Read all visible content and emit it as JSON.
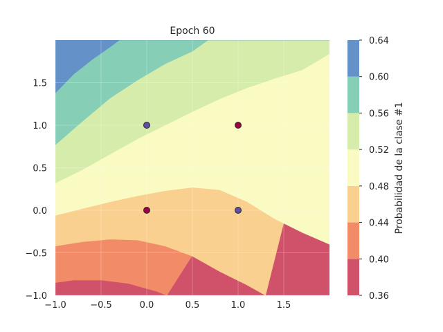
{
  "chart_data": {
    "type": "heatmap",
    "subtype": "filled-contour",
    "title": "Epoch 60",
    "xlabel": "",
    "ylabel": "",
    "xlim": [
      -1.0,
      2.0
    ],
    "ylim": [
      -1.0,
      2.0
    ],
    "xticks": [
      -1.0,
      -0.5,
      0.0,
      0.5,
      1.0,
      1.5
    ],
    "xtick_labels": [
      "−1.0",
      "−0.5",
      "0.0",
      "0.5",
      "1.0",
      "1.5"
    ],
    "yticks": [
      -1.0,
      -0.5,
      0.0,
      0.5,
      1.0,
      1.5
    ],
    "ytick_labels": [
      "−1.0",
      "−0.5",
      "0.0",
      "0.5",
      "1.0",
      "1.5"
    ],
    "contour_levels": [
      0.36,
      0.4,
      0.44,
      0.48,
      0.52,
      0.56,
      0.6,
      0.64
    ],
    "level_colors": [
      "#d0516a",
      "#f28b67",
      "#f9d08f",
      "#fafac3",
      "#d6ecaa",
      "#86cfb6",
      "#6391c8"
    ],
    "contour_boundaries": [
      {
        "level": 0.4,
        "points": [
          [
            -1.0,
            -0.85
          ],
          [
            -0.8,
            -0.82
          ],
          [
            -0.5,
            -0.82
          ],
          [
            -0.2,
            -0.86
          ],
          [
            0.1,
            -0.95
          ],
          [
            0.22,
            -1.0
          ]
        ]
      },
      {
        "level": 0.44,
        "points": [
          [
            -1.0,
            -0.42
          ],
          [
            -0.7,
            -0.37
          ],
          [
            -0.4,
            -0.34
          ],
          [
            -0.1,
            -0.35
          ],
          [
            0.2,
            -0.42
          ],
          [
            0.5,
            -0.54
          ],
          [
            0.8,
            -0.72
          ],
          [
            1.1,
            -0.88
          ],
          [
            1.3,
            -1.0
          ]
        ]
      },
      {
        "level": 0.48,
        "points": [
          [
            -1.0,
            -0.06
          ],
          [
            -0.7,
            0.02
          ],
          [
            -0.4,
            0.1
          ],
          [
            -0.1,
            0.17
          ],
          [
            0.2,
            0.23
          ],
          [
            0.5,
            0.27
          ],
          [
            0.8,
            0.24
          ],
          [
            1.1,
            0.1
          ],
          [
            1.4,
            -0.1
          ],
          [
            1.7,
            -0.26
          ],
          [
            2.0,
            -0.4
          ]
        ]
      },
      {
        "level": 0.52,
        "points": [
          [
            -1.0,
            0.32
          ],
          [
            -0.7,
            0.48
          ],
          [
            -0.4,
            0.66
          ],
          [
            -0.1,
            0.84
          ],
          [
            0.2,
            1.0
          ],
          [
            0.5,
            1.16
          ],
          [
            0.8,
            1.31
          ],
          [
            1.1,
            1.44
          ],
          [
            1.4,
            1.55
          ],
          [
            1.7,
            1.65
          ],
          [
            2.0,
            1.84
          ]
        ]
      },
      {
        "level": 0.56,
        "points": [
          [
            -1.0,
            0.77
          ],
          [
            -0.7,
            1.05
          ],
          [
            -0.4,
            1.32
          ],
          [
            -0.1,
            1.53
          ],
          [
            0.2,
            1.72
          ],
          [
            0.5,
            1.87
          ],
          [
            0.67,
            2.0
          ]
        ]
      },
      {
        "level": 0.6,
        "points": [
          [
            -1.0,
            1.38
          ],
          [
            -0.8,
            1.6
          ],
          [
            -0.6,
            1.77
          ],
          [
            -0.4,
            1.92
          ],
          [
            -0.3,
            2.0
          ]
        ]
      }
    ],
    "points": [
      {
        "x": 0.0,
        "y": 1.0,
        "class": 0,
        "color": "#5e4fa2"
      },
      {
        "x": 1.0,
        "y": 1.0,
        "class": 1,
        "color": "#9e0142"
      },
      {
        "x": 0.0,
        "y": 0.0,
        "class": 1,
        "color": "#9e0142"
      },
      {
        "x": 1.0,
        "y": 0.0,
        "class": 0,
        "color": "#5e4fa2"
      }
    ],
    "colorbar": {
      "label": "Probabilidad de la clase #1",
      "tick_labels": [
        "0.36",
        "0.40",
        "0.44",
        "0.48",
        "0.52",
        "0.56",
        "0.60",
        "0.64"
      ]
    },
    "grid": true
  }
}
